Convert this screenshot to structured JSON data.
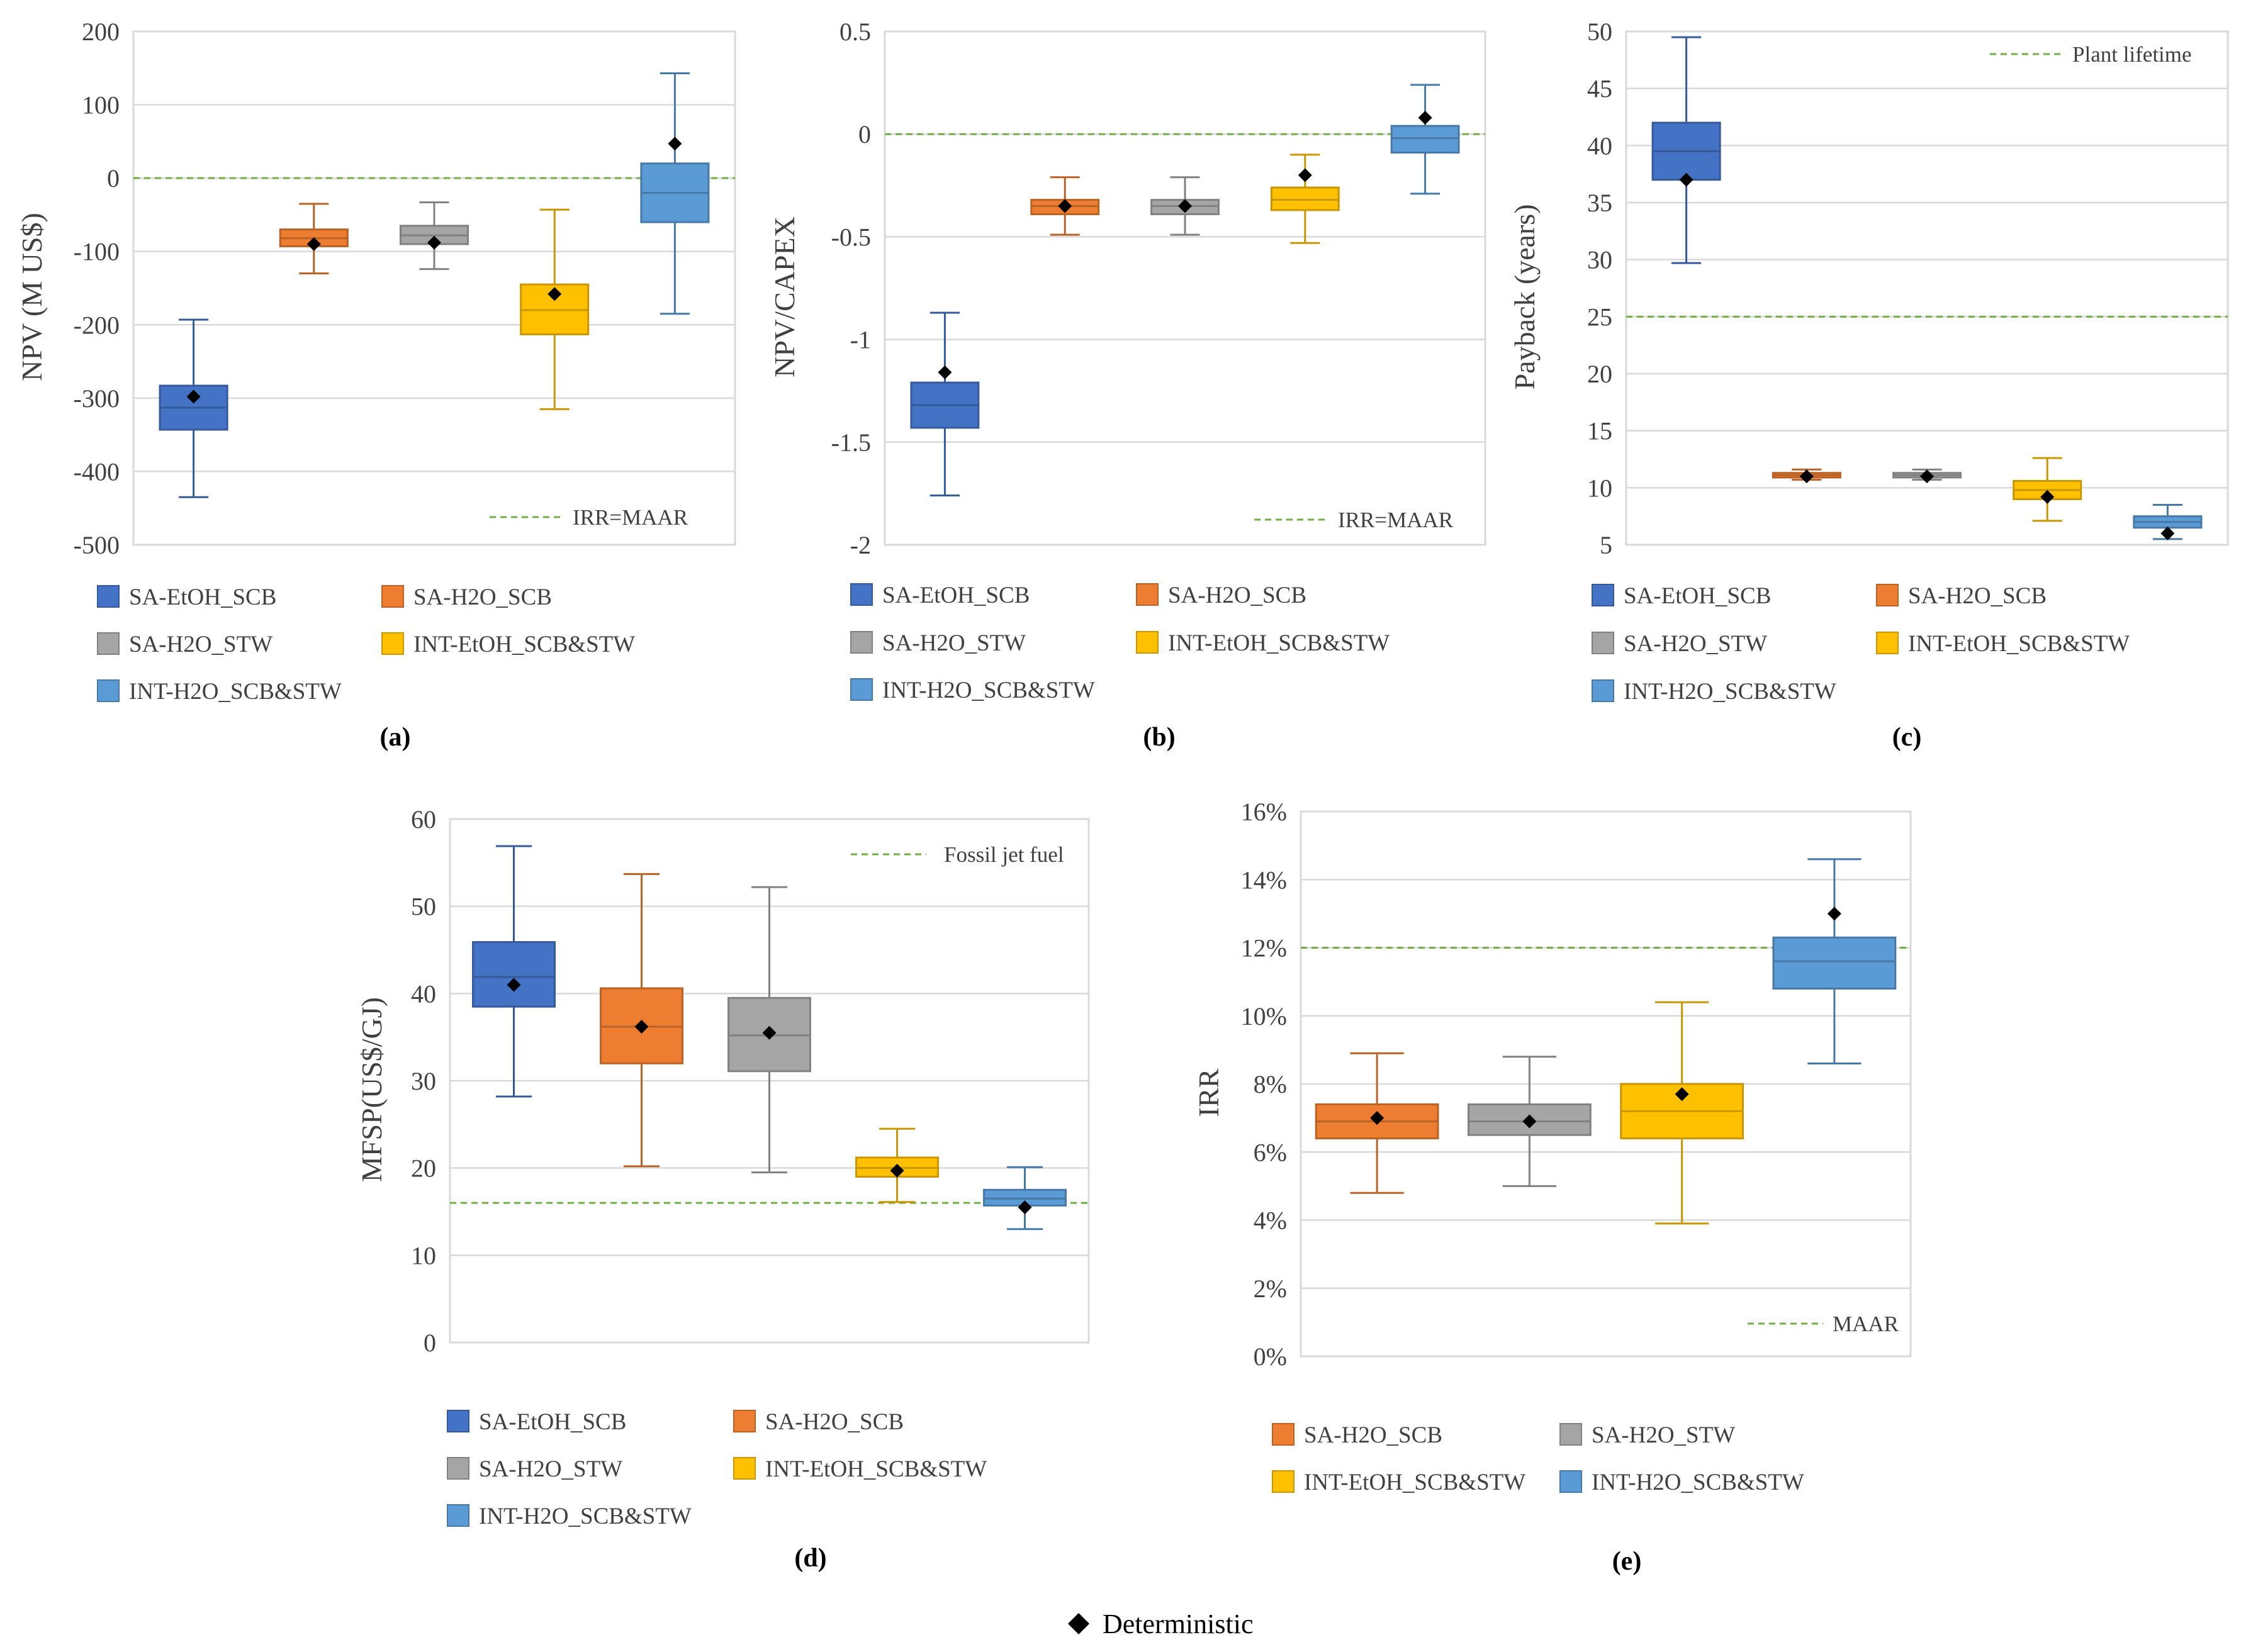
{
  "figure": {
    "panel_labels": [
      "(a)",
      "(b)",
      "(c)",
      "(d)",
      "(e)"
    ],
    "deterministic_label": "Deterministic"
  },
  "colors": {
    "SA-EtOH_SCB": "#4472C4",
    "SA-H2O_SCB": "#ED7D31",
    "SA-H2O_STW": "#A5A5A5",
    "INT-EtOH_SCB&STW": "#FFC000",
    "INT-H2O_SCB&STW": "#5B9BD5",
    "reference_line": "#70AD47",
    "grid": "#D9D9D9",
    "marker": "#000000"
  },
  "chart_data": [
    {
      "id": "a",
      "type": "boxplot",
      "panel_label": "(a)",
      "ylabel": "NPV (M US$)",
      "ylim": [
        -500,
        200
      ],
      "ticks": [
        200,
        100,
        0,
        -100,
        -200,
        -300,
        -400,
        -500
      ],
      "tick_labels": [
        "200",
        "100",
        "0",
        "-100",
        "-200",
        "-300",
        "-400",
        "-500"
      ],
      "reference": {
        "value": 0,
        "label": "IRR=MAAR",
        "legend_position": "bottom-right"
      },
      "legend": [
        "SA-EtOH_SCB",
        "SA-H2O_SCB",
        "SA-H2O_STW",
        "INT-EtOH_SCB&STW",
        "INT-H2O_SCB&STW"
      ],
      "series": [
        {
          "name": "SA-EtOH_SCB",
          "min": -435,
          "q1": -343,
          "median": -313,
          "q3": -283,
          "max": -193,
          "deterministic": -298
        },
        {
          "name": "SA-H2O_SCB",
          "min": -130,
          "q1": -93,
          "median": -82,
          "q3": -70,
          "max": -35,
          "deterministic": -90
        },
        {
          "name": "SA-H2O_STW",
          "min": -124,
          "q1": -90,
          "median": -78,
          "q3": -65,
          "max": -33,
          "deterministic": -88
        },
        {
          "name": "INT-EtOH_SCB&STW",
          "min": -315,
          "q1": -213,
          "median": -180,
          "q3": -145,
          "max": -43,
          "deterministic": -158
        },
        {
          "name": "INT-H2O_SCB&STW",
          "min": -185,
          "q1": -60,
          "median": -20,
          "q3": 20,
          "max": 143,
          "deterministic": 47
        }
      ]
    },
    {
      "id": "b",
      "type": "boxplot",
      "panel_label": "(b)",
      "ylabel": "NPV/CAPEX",
      "ylim": [
        -2,
        0.5
      ],
      "ticks": [
        0.5,
        0,
        -0.5,
        -1,
        -1.5,
        -2
      ],
      "tick_labels": [
        "0.5",
        "0",
        "-0.5",
        "-1",
        "-1.5",
        "-2"
      ],
      "reference": {
        "value": 0,
        "label": "IRR=MAAR",
        "legend_position": "bottom-right"
      },
      "legend": [
        "SA-EtOH_SCB",
        "SA-H2O_SCB",
        "SA-H2O_STW",
        "INT-EtOH_SCB&STW",
        "INT-H2O_SCB&STW"
      ],
      "series": [
        {
          "name": "SA-EtOH_SCB",
          "min": -1.76,
          "q1": -1.43,
          "median": -1.32,
          "q3": -1.21,
          "max": -0.87,
          "deterministic": -1.16
        },
        {
          "name": "SA-H2O_SCB",
          "min": -0.49,
          "q1": -0.39,
          "median": -0.35,
          "q3": -0.32,
          "max": -0.21,
          "deterministic": -0.35
        },
        {
          "name": "SA-H2O_STW",
          "min": -0.49,
          "q1": -0.39,
          "median": -0.35,
          "q3": -0.32,
          "max": -0.21,
          "deterministic": -0.35
        },
        {
          "name": "INT-EtOH_SCB&STW",
          "min": -0.53,
          "q1": -0.37,
          "median": -0.32,
          "q3": -0.26,
          "max": -0.1,
          "deterministic": -0.2
        },
        {
          "name": "INT-H2O_SCB&STW",
          "min": -0.29,
          "q1": -0.09,
          "median": -0.02,
          "q3": 0.04,
          "max": 0.24,
          "deterministic": 0.08
        }
      ]
    },
    {
      "id": "c",
      "type": "boxplot",
      "panel_label": "(c)",
      "ylabel": "Payback (years)",
      "ylim": [
        5,
        50
      ],
      "ticks": [
        50,
        45,
        40,
        35,
        30,
        25,
        20,
        15,
        10,
        5
      ],
      "tick_labels": [
        "50",
        "45",
        "40",
        "35",
        "30",
        "25",
        "20",
        "15",
        "10",
        "5"
      ],
      "reference": {
        "value": 25,
        "label": "Plant lifetime",
        "legend_position": "top-right"
      },
      "legend": [
        "SA-EtOH_SCB",
        "SA-H2O_SCB",
        "SA-H2O_STW",
        "INT-EtOH_SCB&STW",
        "INT-H2O_SCB&STW"
      ],
      "series": [
        {
          "name": "SA-EtOH_SCB",
          "min": 29.7,
          "q1": 37,
          "median": 39.5,
          "q3": 42,
          "max": 49.5,
          "deterministic": 37
        },
        {
          "name": "SA-H2O_SCB",
          "min": 10.7,
          "q1": 10.9,
          "median": 11.1,
          "q3": 11.3,
          "max": 11.6,
          "deterministic": 11
        },
        {
          "name": "SA-H2O_STW",
          "min": 10.7,
          "q1": 10.9,
          "median": 11.1,
          "q3": 11.3,
          "max": 11.6,
          "deterministic": 11
        },
        {
          "name": "INT-EtOH_SCB&STW",
          "min": 7.1,
          "q1": 9,
          "median": 9.8,
          "q3": 10.6,
          "max": 12.6,
          "deterministic": 9.2
        },
        {
          "name": "INT-H2O_SCB&STW",
          "min": 5.5,
          "q1": 6.5,
          "median": 7,
          "q3": 7.5,
          "max": 8.5,
          "deterministic": 6
        }
      ]
    },
    {
      "id": "d",
      "type": "boxplot",
      "panel_label": "(d)",
      "ylabel": "MFSP(US$/GJ)",
      "ylim": [
        0,
        60
      ],
      "ticks": [
        60,
        50,
        40,
        30,
        20,
        10,
        0
      ],
      "tick_labels": [
        "60",
        "50",
        "40",
        "30",
        "20",
        "10",
        "0"
      ],
      "reference": {
        "value": 16,
        "label": "Fossil jet fuel",
        "legend_position": "top-right"
      },
      "legend": [
        "SA-EtOH_SCB",
        "SA-H2O_SCB",
        "SA-H2O_STW",
        "INT-EtOH_SCB&STW",
        "INT-H2O_SCB&STW"
      ],
      "series": [
        {
          "name": "SA-EtOH_SCB",
          "min": 28.2,
          "q1": 38.5,
          "median": 41.9,
          "q3": 45.9,
          "max": 56.9,
          "deterministic": 41
        },
        {
          "name": "SA-H2O_SCB",
          "min": 20.2,
          "q1": 32,
          "median": 36.2,
          "q3": 40.6,
          "max": 53.7,
          "deterministic": 36.2
        },
        {
          "name": "SA-H2O_STW",
          "min": 19.5,
          "q1": 31.1,
          "median": 35.2,
          "q3": 39.5,
          "max": 52.2,
          "deterministic": 35.5
        },
        {
          "name": "INT-EtOH_SCB&STW",
          "min": 16.1,
          "q1": 19,
          "median": 20,
          "q3": 21.2,
          "max": 24.5,
          "deterministic": 19.7
        },
        {
          "name": "INT-H2O_SCB&STW",
          "min": 13,
          "q1": 15.7,
          "median": 16.5,
          "q3": 17.5,
          "max": 20.1,
          "deterministic": 15.5
        }
      ]
    },
    {
      "id": "e",
      "type": "boxplot",
      "panel_label": "(e)",
      "ylabel": "IRR",
      "ylim": [
        0,
        16
      ],
      "ticks": [
        16,
        14,
        12,
        10,
        8,
        6,
        4,
        2,
        0
      ],
      "tick_labels": [
        "16%",
        "14%",
        "12%",
        "10%",
        "8%",
        "6%",
        "4%",
        "2%",
        "0%"
      ],
      "reference": {
        "value": 12,
        "label": "MAAR",
        "legend_position": "bottom-right"
      },
      "legend": [
        "SA-H2O_SCB",
        "SA-H2O_STW",
        "INT-EtOH_SCB&STW",
        "INT-H2O_SCB&STW"
      ],
      "series": [
        {
          "name": "SA-H2O_SCB",
          "min": 4.8,
          "q1": 6.4,
          "median": 6.9,
          "q3": 7.4,
          "max": 8.9,
          "deterministic": 7
        },
        {
          "name": "SA-H2O_STW",
          "min": 5,
          "q1": 6.5,
          "median": 6.9,
          "q3": 7.4,
          "max": 8.8,
          "deterministic": 6.9
        },
        {
          "name": "INT-EtOH_SCB&STW",
          "min": 3.9,
          "q1": 6.4,
          "median": 7.2,
          "q3": 8,
          "max": 10.4,
          "deterministic": 7.7
        },
        {
          "name": "INT-H2O_SCB&STW",
          "min": 8.6,
          "q1": 10.8,
          "median": 11.6,
          "q3": 12.3,
          "max": 14.6,
          "deterministic": 13
        }
      ]
    }
  ]
}
